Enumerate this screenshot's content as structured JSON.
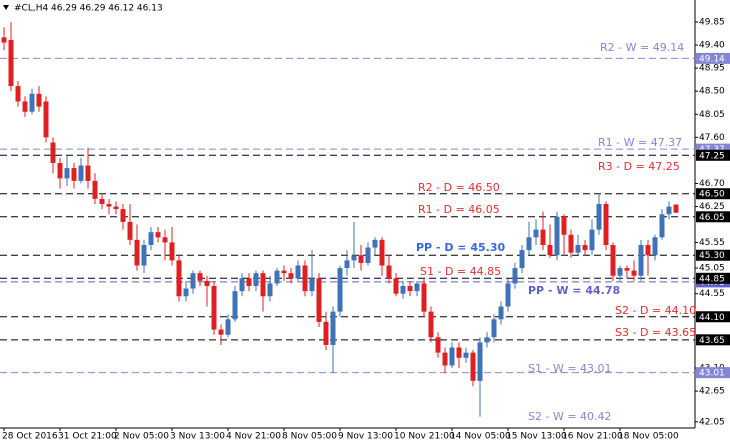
{
  "chart_data": {
    "type": "candlestick",
    "title": "#CL,H4  46.29 46.29 46.12 46.13",
    "ylim": [
      41.93,
      50.24
    ],
    "yticks": [
      49.85,
      {
        "value": 49.4,
        "label": "49.40"
      },
      48.95,
      {
        "value": 48.5,
        "label": "48.50"
      },
      48.05,
      {
        "value": 47.6,
        "label": "47.60"
      },
      {
        "value": 46.7,
        "label": "46.70"
      },
      46.25,
      45.55,
      45.05,
      44.55,
      {
        "value": 43.1,
        "label": "43.10"
      },
      42.65,
      42.05
    ],
    "up_color": "#3f73b8",
    "down_color": "#e02020",
    "categories": [
      "28 Oct 2016",
      null,
      null,
      null,
      null,
      null,
      null,
      null,
      "31 Oct 21:00",
      null,
      null,
      null,
      null,
      null,
      null,
      null,
      "2 Nov 05:00",
      null,
      null,
      null,
      null,
      null,
      null,
      null,
      "3 Nov 13:00",
      null,
      null,
      null,
      null,
      null,
      null,
      null,
      "4 Nov 21:00",
      null,
      null,
      null,
      null,
      null,
      null,
      null,
      "8 Nov 05:00",
      null,
      null,
      null,
      null,
      null,
      null,
      null,
      "9 Nov 13:00",
      null,
      null,
      null,
      null,
      null,
      null,
      null,
      "10 Nov 21:00",
      null,
      null,
      null,
      null,
      null,
      null,
      null,
      "14 Nov 05:00",
      null,
      null,
      null,
      null,
      null,
      null,
      null,
      "15 Nov 13:00",
      null,
      null,
      null,
      null,
      null,
      null,
      null,
      "16 Nov 21:00",
      null,
      null,
      null,
      null,
      null,
      null,
      null,
      "18 Nov 05:00",
      null,
      null,
      null,
      null,
      null,
      null,
      null,
      null
    ],
    "open": [
      49.55,
      49.5,
      48.6,
      48.3,
      48.1,
      48.45,
      48.3,
      47.5,
      47.1,
      46.8,
      47.0,
      46.75,
      47.05,
      46.75,
      46.4,
      46.3,
      46.25,
      46.2,
      45.95,
      45.6,
      45.1,
      45.5,
      45.75,
      45.65,
      45.55,
      45.2,
      44.5,
      44.65,
      44.95,
      44.8,
      44.7,
      43.85,
      43.75,
      44.05,
      44.6,
      44.85,
      44.7,
      44.95,
      44.5,
      44.75,
      45.0,
      44.95,
      44.85,
      45.1,
      44.6,
      44.85,
      44.0,
      43.55,
      44.2,
      45.05,
      45.2,
      45.3,
      45.15,
      45.45,
      45.6,
      45.1,
      44.85,
      44.55,
      44.7,
      44.6,
      44.75,
      44.2,
      43.7,
      43.4,
      43.15,
      43.5,
      43.3,
      43.4,
      42.85,
      43.6,
      43.7,
      44.05,
      44.3,
      44.75,
      45.05,
      45.4,
      45.65,
      45.8,
      45.5,
      45.3,
      46.05,
      45.7,
      45.35,
      45.5,
      45.4,
      45.8,
      46.3,
      45.5,
      44.9,
      45.05,
      45.0,
      44.9,
      45.5,
      45.3,
      45.65,
      46.1,
      46.29
    ],
    "high": [
      49.75,
      49.85,
      48.7,
      48.4,
      48.55,
      48.6,
      48.4,
      47.6,
      47.2,
      47.25,
      47.1,
      47.2,
      47.4,
      46.9,
      46.5,
      46.4,
      46.35,
      46.3,
      46.3,
      45.9,
      45.6,
      45.85,
      45.85,
      45.8,
      45.85,
      45.3,
      44.8,
      45.0,
      45.0,
      44.9,
      44.8,
      43.95,
      44.15,
      44.7,
      44.95,
      44.95,
      45.0,
      45.0,
      44.9,
      45.05,
      45.1,
      45.05,
      45.2,
      45.2,
      45.4,
      44.95,
      44.2,
      44.3,
      45.1,
      45.4,
      45.95,
      45.5,
      45.55,
      45.65,
      45.65,
      45.3,
      44.95,
      44.8,
      44.8,
      44.8,
      44.85,
      44.3,
      43.8,
      43.5,
      43.6,
      43.6,
      43.5,
      43.45,
      43.7,
      43.8,
      44.15,
      44.4,
      44.85,
      45.15,
      45.5,
      45.95,
      46.0,
      46.15,
      45.9,
      46.15,
      46.1,
      45.8,
      45.7,
      45.6,
      46.0,
      46.5,
      46.35,
      45.55,
      45.1,
      45.1,
      45.2,
      45.6,
      45.6,
      45.7,
      46.2,
      46.35,
      46.29
    ],
    "low": [
      49.3,
      48.5,
      48.2,
      48.0,
      48.05,
      48.1,
      47.5,
      46.9,
      46.6,
      46.65,
      46.6,
      46.7,
      46.6,
      46.3,
      46.2,
      46.1,
      46.1,
      45.8,
      45.5,
      45.0,
      44.95,
      45.4,
      45.55,
      45.2,
      45.1,
      44.4,
      44.4,
      44.55,
      44.7,
      44.3,
      43.75,
      43.55,
      43.7,
      44.0,
      44.5,
      44.6,
      44.6,
      44.2,
      44.4,
      44.7,
      44.8,
      44.75,
      44.8,
      44.5,
      44.5,
      43.9,
      43.45,
      43.0,
      44.1,
      44.9,
      45.05,
      45.0,
      45.1,
      45.3,
      44.9,
      44.75,
      44.5,
      44.45,
      44.5,
      44.5,
      44.1,
      43.6,
      43.3,
      43.0,
      43.1,
      43.1,
      43.2,
      42.75,
      42.15,
      43.5,
      43.6,
      43.95,
      44.2,
      44.65,
      44.95,
      45.3,
      45.5,
      45.4,
      45.25,
      45.2,
      45.3,
      45.25,
      45.3,
      45.3,
      45.3,
      45.7,
      45.4,
      44.8,
      44.8,
      44.85,
      44.8,
      44.8,
      44.9,
      45.2,
      45.6,
      46.0,
      46.12
    ],
    "close": [
      49.45,
      48.6,
      48.3,
      48.1,
      48.45,
      48.2,
      47.6,
      47.1,
      46.8,
      47.0,
      46.75,
      47.05,
      46.75,
      46.4,
      46.3,
      46.25,
      46.2,
      45.95,
      45.6,
      45.1,
      45.5,
      45.75,
      45.65,
      45.55,
      45.2,
      44.5,
      44.65,
      44.95,
      44.8,
      44.7,
      43.85,
      43.75,
      44.05,
      44.6,
      44.85,
      44.7,
      44.95,
      44.5,
      44.75,
      45.0,
      44.95,
      44.85,
      45.1,
      44.6,
      44.85,
      44.0,
      43.55,
      44.2,
      45.05,
      45.2,
      45.3,
      45.15,
      45.45,
      45.6,
      45.1,
      44.85,
      44.55,
      44.7,
      44.6,
      44.75,
      44.2,
      43.7,
      43.4,
      43.15,
      43.5,
      43.3,
      43.4,
      42.85,
      43.6,
      43.7,
      44.05,
      44.3,
      44.75,
      45.05,
      45.4,
      45.65,
      45.8,
      45.5,
      45.3,
      46.05,
      45.7,
      45.35,
      45.5,
      45.4,
      45.8,
      46.3,
      45.5,
      44.9,
      45.05,
      45.0,
      44.9,
      45.5,
      45.3,
      45.65,
      46.1,
      46.25,
      46.13
    ],
    "levels": [
      {
        "name": "R2 - W = 49.14",
        "value": 49.14,
        "axis_label": "49.14",
        "kind": "W",
        "color": "#8585d6",
        "bold": false
      },
      {
        "name": "R1 - W = 47.37",
        "value": 47.37,
        "axis_label": "47.37",
        "kind": "W",
        "color": "#8585d6",
        "bold": false
      },
      {
        "name": "R3 - D = 47.25",
        "value": 47.25,
        "axis_label": "47.25",
        "kind": "D",
        "color": "#e03030",
        "bold": false
      },
      {
        "name": "R2 - D = 46.50",
        "value": 46.5,
        "axis_label": "46.50",
        "kind": "D",
        "color": "#e03030",
        "bold": false
      },
      {
        "name": "R1 - D = 46.05",
        "value": 46.05,
        "axis_label": "46.05",
        "kind": "D",
        "color": "#e03030",
        "bold": false
      },
      {
        "name": "PP - D = 45.30",
        "value": 45.3,
        "axis_label": "45.30",
        "kind": "D",
        "color": "#3568e0",
        "bold": true
      },
      {
        "name": "S1 - D = 44.85",
        "value": 44.85,
        "axis_label": "44.85",
        "kind": "D",
        "color": "#e03030",
        "bold": false
      },
      {
        "name": "PP - W = 44.78",
        "value": 44.78,
        "axis_label": "44.78",
        "kind": "W",
        "color": "#6060d0",
        "bold": true
      },
      {
        "name": "S2 - D = 44.10",
        "value": 44.1,
        "axis_label": "44.10",
        "kind": "D",
        "color": "#e03030",
        "bold": false
      },
      {
        "name": "S3 - D = 43.65",
        "value": 43.65,
        "axis_label": "43.65",
        "kind": "D",
        "color": "#e03030",
        "bold": false
      },
      {
        "name": "S1 - W = 43.01",
        "value": 43.01,
        "axis_label": "43.01",
        "kind": "W",
        "color": "#8585d6",
        "bold": false
      },
      {
        "name": "S2 - W = 40.42",
        "value": 40.42,
        "kind": "W",
        "color": "#8585d6",
        "bold": false
      }
    ]
  }
}
